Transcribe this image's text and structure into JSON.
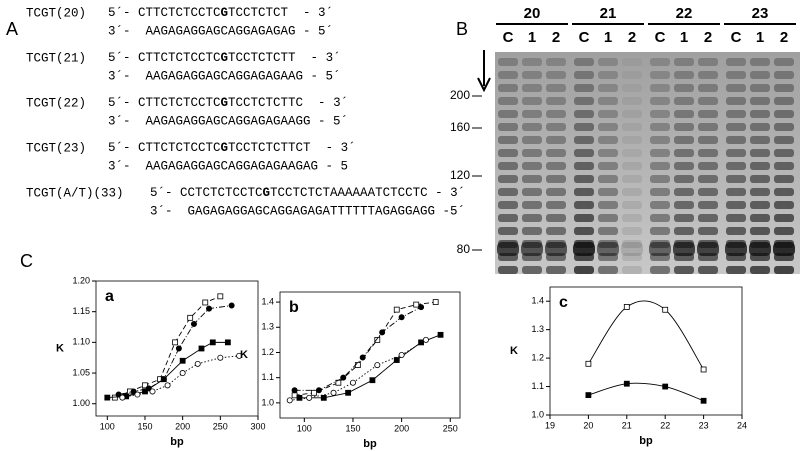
{
  "panel_a": {
    "label": "A",
    "rows": [
      {
        "name": "TCGT(20)",
        "top": [
          "5´- CTTCTCTCCTC",
          "G",
          "TCCTCTCT  - 3´"
        ],
        "bottom": "3´-  AAGAGAGGAGCAGGAGAGAG - 5´"
      },
      {
        "name": "TCGT(21)",
        "top": [
          "5´- CTTCTCTCCTC",
          "G",
          "TCCTCTCTT  - 3´"
        ],
        "bottom": "3´-  AAGAGAGGAGCAGGAGAGAAG - 5´"
      },
      {
        "name": "TCGT(22)",
        "top": [
          "5´- CTTCTCTCCTC",
          "G",
          "TCCTCTCTTC  - 3´"
        ],
        "bottom": "3´-  AAGAGAGGAGCAGGAGAGAAGG - 5´"
      },
      {
        "name": "TCGT(23)",
        "top": [
          "5´- CTTCTCTCCTC",
          "G",
          "TCCTCTCTTCT  - 3´"
        ],
        "bottom": "3´-  AAGAGAGGAGCAGGAGAGAAGAG - 5"
      },
      {
        "name": "TCGT(A/T)(33)",
        "top": [
          "5´- CCTCTCTCCTC",
          "G",
          "TCCTCTCTAAAAAATCTCCTC - 3´"
        ],
        "bottom": "3´-  GAGAGAGGAGCAGGAGAGATTTTTTAGAGGAGG -5´"
      }
    ]
  },
  "panel_b": {
    "label": "B",
    "groups": [
      "20",
      "21",
      "22",
      "23"
    ],
    "lanes": [
      "C",
      "1",
      "2"
    ],
    "markers": [
      200,
      160,
      120,
      80
    ]
  },
  "panel_c": {
    "label": "C"
  },
  "chart_data": [
    {
      "type": "line",
      "label": "a",
      "xlabel": "bp",
      "ylabel": "K",
      "xlim": [
        85,
        300
      ],
      "xticks": [
        100,
        150,
        200,
        250,
        300
      ],
      "ylim": [
        0.98,
        1.2
      ],
      "yticks": [
        {
          "value": 1,
          "label": "1.00"
        },
        {
          "value": 1.05,
          "label": "1.05"
        },
        {
          "value": 1.1,
          "label": "1.10"
        },
        {
          "value": 1.15,
          "label": "1.15"
        },
        {
          "value": 1.2,
          "label": "1.20"
        }
      ],
      "series": [
        {
          "marker": "square-open",
          "dash": "dashed",
          "x": [
            110,
            130,
            150,
            170,
            190,
            210,
            230,
            250
          ],
          "values": [
            1.01,
            1.02,
            1.03,
            1.04,
            1.1,
            1.14,
            1.165,
            1.175
          ]
        },
        {
          "marker": "circle-filled",
          "dash": "dashdot",
          "x": [
            115,
            135,
            155,
            175,
            195,
            215,
            235,
            265
          ],
          "values": [
            1.015,
            1.02,
            1.025,
            1.04,
            1.09,
            1.13,
            1.155,
            1.16
          ]
        },
        {
          "marker": "square-filled",
          "dash": "solid",
          "x": [
            100,
            125,
            150,
            175,
            200,
            225,
            240,
            260
          ],
          "values": [
            1.01,
            1.012,
            1.02,
            1.04,
            1.07,
            1.09,
            1.1,
            1.1
          ]
        },
        {
          "marker": "circle-open",
          "dash": "dotted",
          "x": [
            120,
            140,
            160,
            180,
            200,
            220,
            250,
            275
          ],
          "values": [
            1.01,
            1.015,
            1.02,
            1.03,
            1.05,
            1.065,
            1.075,
            1.078
          ]
        }
      ]
    },
    {
      "type": "line",
      "label": "b",
      "xlabel": "bp",
      "ylabel": "K",
      "xlim": [
        75,
        260
      ],
      "xticks": [
        100,
        150,
        200,
        250
      ],
      "ylim": [
        0.94,
        1.44
      ],
      "yticks": [
        {
          "value": 1,
          "label": "1.0"
        },
        {
          "value": 1.1,
          "label": "1.1"
        },
        {
          "value": 1.2,
          "label": "1.2"
        },
        {
          "value": 1.3,
          "label": "1.3"
        },
        {
          "value": 1.4,
          "label": "1.4"
        }
      ],
      "series": [
        {
          "marker": "square-open",
          "dash": "dashed",
          "x": [
            90,
            110,
            135,
            155,
            175,
            195,
            215,
            235
          ],
          "values": [
            1.03,
            1.04,
            1.08,
            1.15,
            1.25,
            1.37,
            1.39,
            1.4
          ]
        },
        {
          "marker": "circle-filled",
          "dash": "dashdot",
          "x": [
            90,
            115,
            140,
            160,
            180,
            200,
            220
          ],
          "values": [
            1.05,
            1.05,
            1.1,
            1.18,
            1.28,
            1.34,
            1.38
          ]
        },
        {
          "marker": "square-filled",
          "dash": "solid",
          "x": [
            95,
            120,
            145,
            170,
            195,
            220,
            240
          ],
          "values": [
            1.02,
            1.02,
            1.04,
            1.09,
            1.17,
            1.24,
            1.27
          ]
        },
        {
          "marker": "circle-open",
          "dash": "dotted",
          "x": [
            85,
            105,
            130,
            150,
            175,
            200,
            225
          ],
          "values": [
            1.01,
            1.02,
            1.04,
            1.08,
            1.15,
            1.19,
            1.25
          ]
        }
      ]
    },
    {
      "type": "line",
      "label": "c",
      "xlabel": "bp",
      "ylabel": "K",
      "smooth": true,
      "xlim": [
        19,
        24
      ],
      "xticks": [
        19,
        20,
        21,
        22,
        23,
        24
      ],
      "ylim": [
        1,
        1.45
      ],
      "yticks": [
        {
          "value": 1,
          "label": "1.0"
        },
        {
          "value": 1.1,
          "label": "1.1"
        },
        {
          "value": 1.2,
          "label": "1.2"
        },
        {
          "value": 1.3,
          "label": "1.3"
        },
        {
          "value": 1.4,
          "label": "1.4"
        }
      ],
      "series": [
        {
          "marker": "square-open",
          "dash": "solid",
          "x": [
            20,
            21,
            22,
            23
          ],
          "values": [
            1.18,
            1.38,
            1.37,
            1.16
          ]
        },
        {
          "marker": "square-filled",
          "dash": "solid",
          "x": [
            20,
            21,
            22,
            23
          ],
          "values": [
            1.07,
            1.11,
            1.1,
            1.05
          ]
        }
      ]
    }
  ]
}
